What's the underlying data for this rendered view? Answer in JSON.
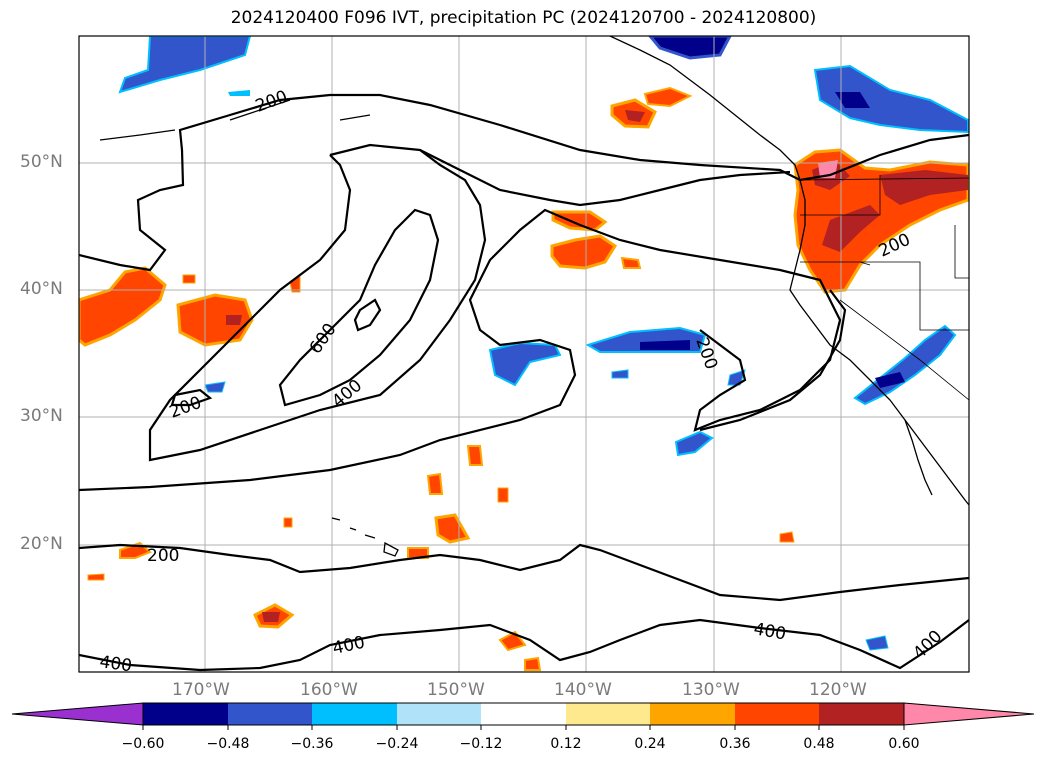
{
  "title": "2024120400 F096 IVT, precipitation PC (2024120700 - 2024120800)",
  "lat_labels": [
    "50°N",
    "40°N",
    "30°N",
    "20°N"
  ],
  "lon_labels": [
    "170°W",
    "160°W",
    "150°W",
    "140°W",
    "130°W",
    "120°W"
  ],
  "colorbar": {
    "ticks": [
      "−0.60",
      "−0.48",
      "−0.36",
      "−0.24",
      "−0.12",
      "0.12",
      "0.24",
      "0.36",
      "0.48",
      "0.60"
    ],
    "colors": {
      "lt_-0.60": "#9b30d0",
      "-0.60_-0.48": "#00008b",
      "-0.48_-0.36": "#3355cc",
      "-0.36_-0.24": "#00bfff",
      "-0.24_-0.12": "#b0e2fa",
      "-0.12_0.12": "#ffffff",
      "0.12_0.24": "#ffe98f",
      "0.24_0.36": "#ffa500",
      "0.36_0.48": "#ff4500",
      "0.48_0.60": "#b22222",
      "gt_0.60": "#ff88aa"
    }
  },
  "contour_labels": {
    "c1": "200",
    "c2": "600",
    "c3": "400",
    "c4": "200",
    "c5": "200",
    "c6": "200",
    "c7": "400",
    "c8": "400",
    "c9": "400",
    "c10": "200"
  },
  "map": {
    "lon_range": [
      -180,
      -110
    ],
    "lat_range": [
      10,
      60
    ],
    "grid": true,
    "ivt_contour_levels": [
      200,
      400,
      600
    ]
  }
}
